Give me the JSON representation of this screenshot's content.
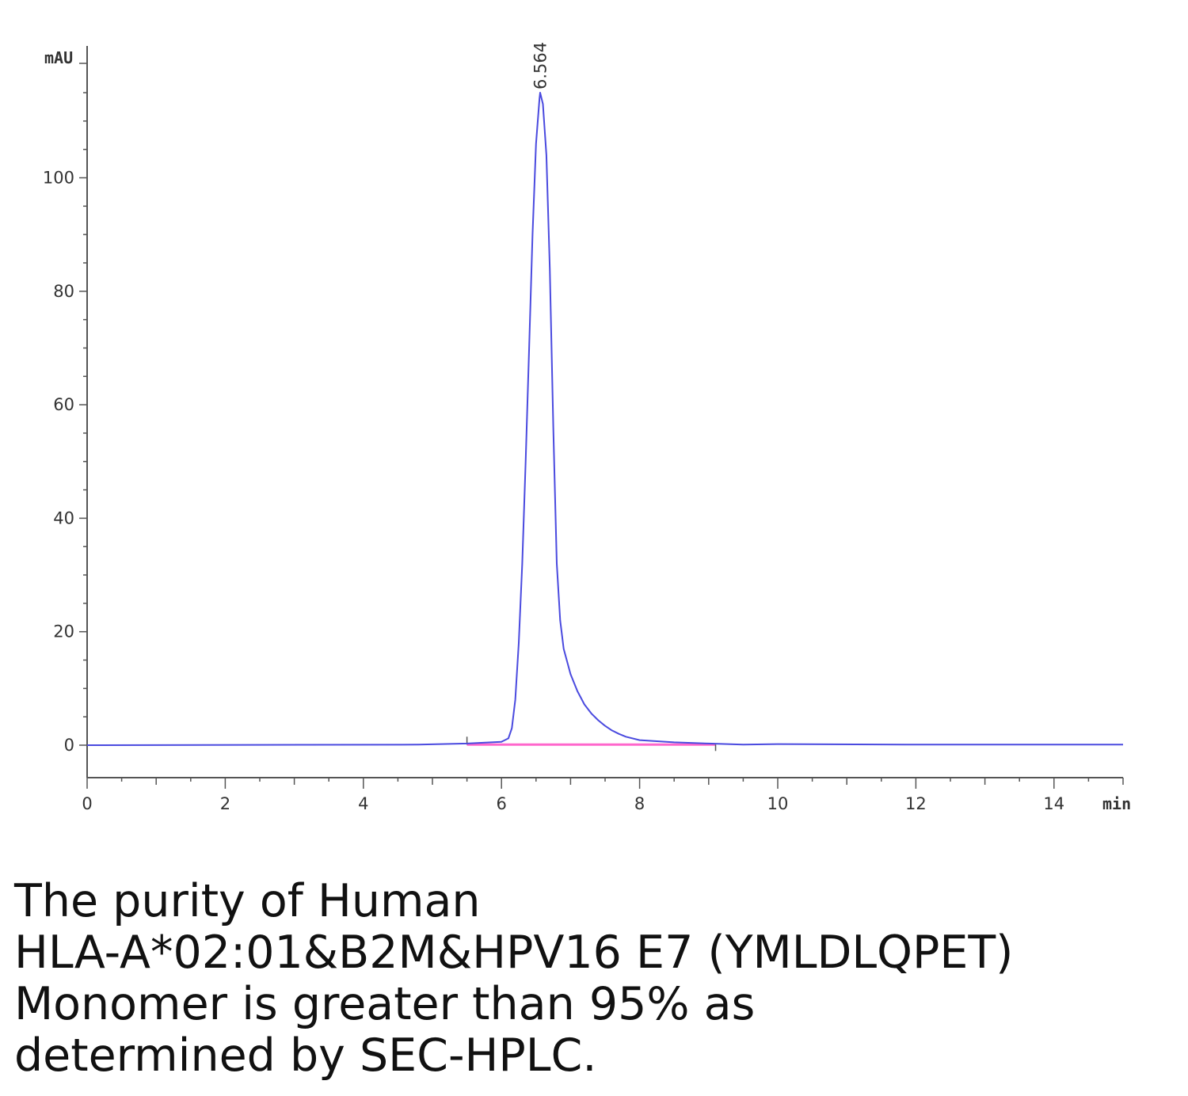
{
  "chart_data": {
    "type": "line",
    "ylabel": "mAU",
    "xlabel": "min",
    "xlim": [
      0,
      15
    ],
    "ylim": [
      -6,
      122
    ],
    "x_ticks": [
      0,
      2,
      4,
      6,
      8,
      10,
      12,
      14
    ],
    "y_ticks": [
      0,
      20,
      40,
      60,
      80,
      100
    ],
    "grid": false,
    "peaks": [
      {
        "retention_time": 6.564,
        "label": "6.564",
        "height": 115
      }
    ],
    "baseline_segment": {
      "x_start": 5.5,
      "x_end": 9.1
    },
    "series": [
      {
        "color": "#4a4adf",
        "points": [
          [
            0,
            0
          ],
          [
            4.8,
            0.1
          ],
          [
            5.5,
            0.3
          ],
          [
            6.0,
            0.6
          ],
          [
            6.1,
            1.2
          ],
          [
            6.15,
            3
          ],
          [
            6.2,
            8
          ],
          [
            6.25,
            18
          ],
          [
            6.3,
            32
          ],
          [
            6.35,
            50
          ],
          [
            6.4,
            70
          ],
          [
            6.45,
            90
          ],
          [
            6.5,
            106
          ],
          [
            6.55,
            114
          ],
          [
            6.56,
            115
          ],
          [
            6.6,
            113
          ],
          [
            6.65,
            104
          ],
          [
            6.7,
            84
          ],
          [
            6.75,
            56
          ],
          [
            6.8,
            32
          ],
          [
            6.85,
            22
          ],
          [
            6.9,
            17
          ],
          [
            7.0,
            12.5
          ],
          [
            7.1,
            9.5
          ],
          [
            7.2,
            7.2
          ],
          [
            7.3,
            5.6
          ],
          [
            7.4,
            4.4
          ],
          [
            7.5,
            3.4
          ],
          [
            7.6,
            2.6
          ],
          [
            7.7,
            2.0
          ],
          [
            7.8,
            1.5
          ],
          [
            8.0,
            0.9
          ],
          [
            8.5,
            0.5
          ],
          [
            9.0,
            0.3
          ],
          [
            9.5,
            0.1
          ],
          [
            10.0,
            0.2
          ],
          [
            12.0,
            0.1
          ],
          [
            15.0,
            0.1
          ]
        ]
      }
    ]
  },
  "colors": {
    "trace": "#4a4adf",
    "baseline": "#ff66cc",
    "axis": "#555555"
  },
  "caption": {
    "line1": "The purity of Human",
    "line2": "HLA-A*02:01&B2M&HPV16 E7 (YMLDLQPET)",
    "line3": "Monomer is greater than 95% as",
    "line4": "determined by SEC-HPLC."
  }
}
